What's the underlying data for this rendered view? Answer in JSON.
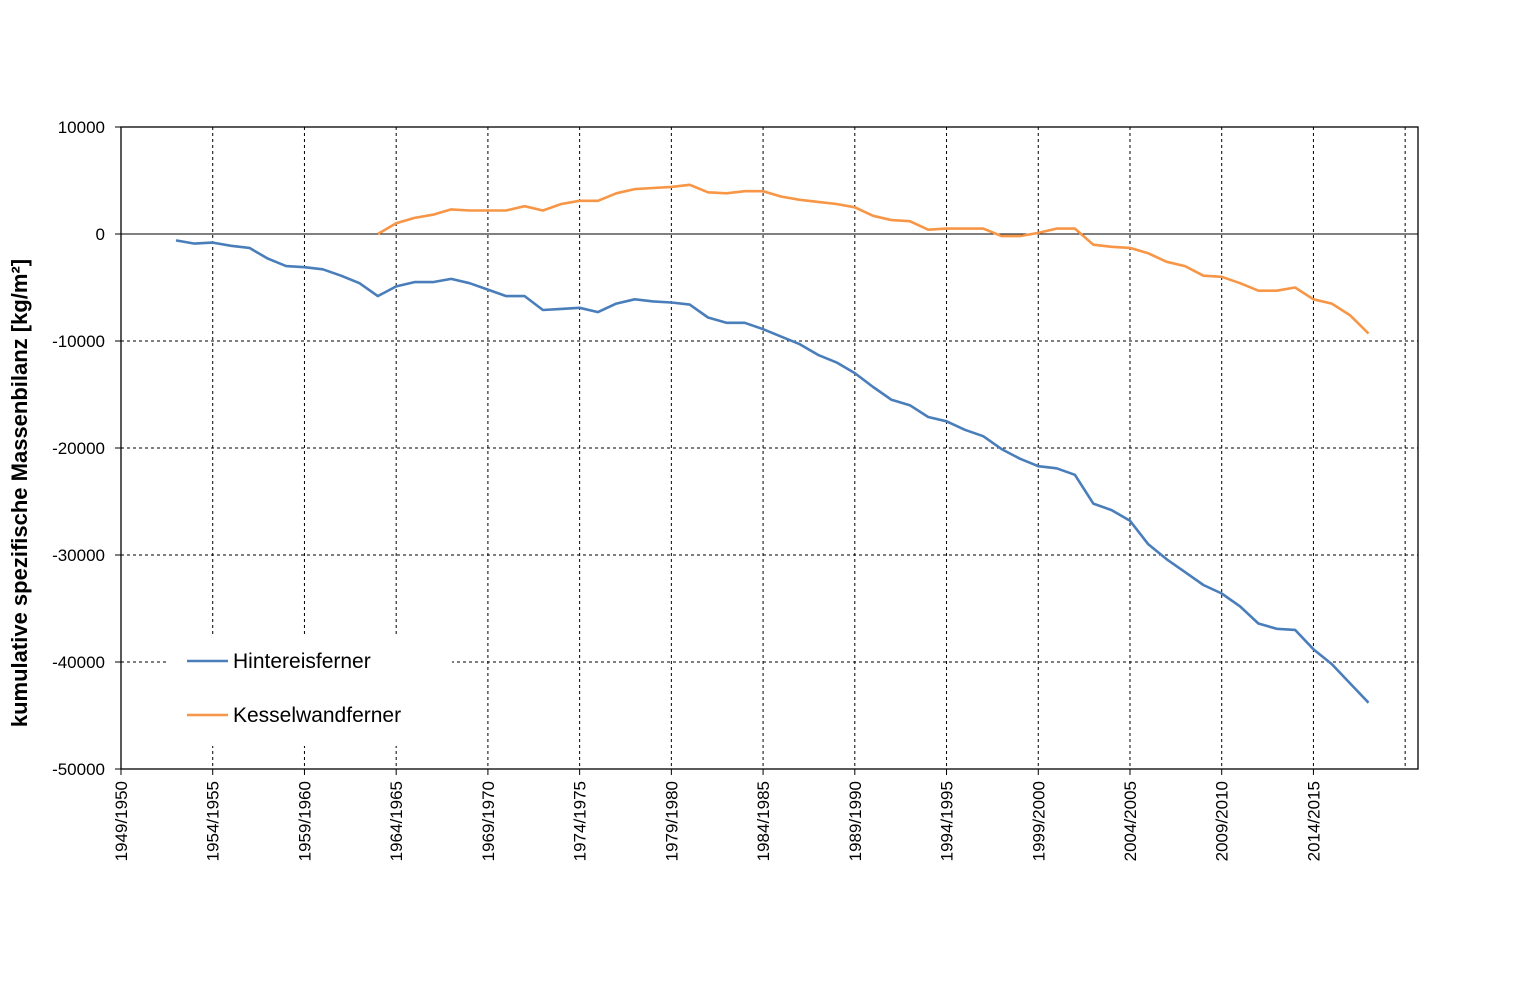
{
  "chart_data": {
    "type": "line",
    "title": "",
    "xlabel": "",
    "ylabel": "kumulative spezifische Massenbilanz [kg/m²]",
    "ylim": [
      -50000,
      10000
    ],
    "yticks": [
      10000,
      0,
      -10000,
      -20000,
      -30000,
      -40000,
      -50000
    ],
    "x_tick_labels": [
      "1949/1950",
      "1954/1955",
      "1959/1960",
      "1964/1965",
      "1969/1970",
      "1974/1975",
      "1979/1980",
      "1984/1985",
      "1989/1990",
      "1994/1995",
      "1999/2000",
      "2004/2005",
      "2009/2010",
      "2014/2015"
    ],
    "grid": true,
    "legend_position": "bottom-left",
    "series": [
      {
        "name": "Hintereisferner",
        "color": "#4a7ebb",
        "x": [
          1953,
          1954,
          1955,
          1956,
          1957,
          1958,
          1959,
          1960,
          1961,
          1962,
          1963,
          1964,
          1965,
          1966,
          1967,
          1968,
          1969,
          1970,
          1971,
          1972,
          1973,
          1974,
          1975,
          1976,
          1977,
          1978,
          1979,
          1980,
          1981,
          1982,
          1983,
          1984,
          1985,
          1986,
          1987,
          1988,
          1989,
          1990,
          1991,
          1992,
          1993,
          1994,
          1995,
          1996,
          1997,
          1998,
          1999,
          2000,
          2001,
          2002,
          2003,
          2004,
          2005,
          2006,
          2007,
          2008,
          2009,
          2010,
          2011,
          2012,
          2013,
          2014,
          2015,
          2016,
          2017,
          2018
        ],
        "values": [
          -600,
          -900,
          -800,
          -1100,
          -1300,
          -2300,
          -3000,
          -3100,
          -3300,
          -3900,
          -4600,
          -5800,
          -4900,
          -4500,
          -4500,
          -4200,
          -4600,
          -5200,
          -5800,
          -5800,
          -7100,
          -7000,
          -6900,
          -7300,
          -6500,
          -6100,
          -6300,
          -6400,
          -6600,
          -7800,
          -8300,
          -8300,
          -8900,
          -9600,
          -10300,
          -11300,
          -12000,
          -13000,
          -14300,
          -15500,
          -16000,
          -17100,
          -17500,
          -18300,
          -18900,
          -20100,
          -21000,
          -21700,
          -21900,
          -22500,
          -25200,
          -25800,
          -26800,
          -29000,
          -30400,
          -31600,
          -32800,
          -33600,
          -34800,
          -36400,
          -36900,
          -37000,
          -38800,
          -40200,
          -42000,
          -43800
        ]
      },
      {
        "name": "Kesselwandferner",
        "color": "#f79646",
        "x": [
          1964,
          1965,
          1966,
          1967,
          1968,
          1969,
          1970,
          1971,
          1972,
          1973,
          1974,
          1975,
          1976,
          1977,
          1978,
          1979,
          1980,
          1981,
          1982,
          1983,
          1984,
          1985,
          1986,
          1987,
          1988,
          1989,
          1990,
          1991,
          1992,
          1993,
          1994,
          1995,
          1996,
          1997,
          1998,
          1999,
          2000,
          2001,
          2002,
          2003,
          2004,
          2005,
          2006,
          2007,
          2008,
          2009,
          2010,
          2011,
          2012,
          2013,
          2014,
          2015,
          2016,
          2017,
          2018
        ],
        "values": [
          0,
          1000,
          1500,
          1800,
          2300,
          2200,
          2200,
          2200,
          2600,
          2200,
          2800,
          3100,
          3100,
          3800,
          4200,
          4300,
          4400,
          4600,
          3900,
          3800,
          4000,
          4000,
          3500,
          3200,
          3000,
          2800,
          2500,
          1700,
          1300,
          1200,
          400,
          500,
          500,
          500,
          -200,
          -200,
          100,
          500,
          500,
          -1000,
          -1200,
          -1300,
          -1800,
          -2600,
          -3000,
          -3900,
          -4000,
          -4600,
          -5300,
          -5300,
          -5000,
          -6100,
          -6500,
          -7600,
          -9300
        ]
      }
    ]
  }
}
